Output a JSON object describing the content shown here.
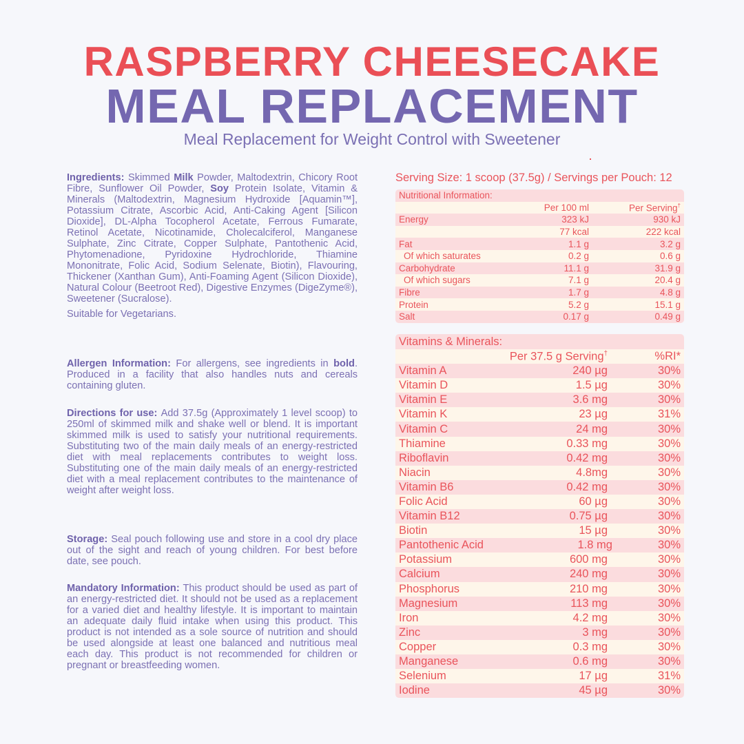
{
  "header": {
    "title_line1": "RASPBERRY CHEESECAKE",
    "title_line2": "MEAL REPLACEMENT",
    "subtitle": "Meal Replacement for Weight Control with Sweetener"
  },
  "colors": {
    "red": "#ea4f56",
    "purple": "#7467b0",
    "pink_row": "#fbdcde",
    "cream_row": "#fef6ea",
    "background": "#f6f7fb"
  },
  "info": {
    "ingredients": [
      {
        "b": true,
        "t": "Ingredients: "
      },
      {
        "t": "Skimmed "
      },
      {
        "b": true,
        "t": "Milk"
      },
      {
        "t": " Powder, Maltodextrin, Chicory Root Fibre, Sunflower Oil Powder, "
      },
      {
        "b": true,
        "t": "Soy"
      },
      {
        "t": " Protein Isolate, Vitamin & Minerals (Maltodextrin, Magnesium Hydroxide [Aquamin™], Potassium Citrate, Ascorbic Acid, Anti-Caking Agent [Silicon Dioxide], DL-Alpha Tocopherol Acetate, Ferrous Fumarate, Retinol Acetate, Nicotinamide, Cholecalciferol, Manganese Sulphate, Zinc Citrate, Copper Sulphate, Pantothenic Acid, Phytomenadione, Pyridoxine Hydrochloride, Thiamine Mononitrate, Folic Acid, Sodium Selenate, Biotin), Flavouring, Thickener (Xanthan Gum), Anti-Foaming Agent (Silicon Dioxide), Natural Colour (Beetroot Red), Digestive Enzymes (DigeZyme®), Sweetener (Sucralose)."
      }
    ],
    "vegetarian": "Suitable for Vegetarians.",
    "allergen": [
      {
        "b": true,
        "t": "Allergen Information: "
      },
      {
        "t": "For allergens, see ingredients in "
      },
      {
        "b": true,
        "t": "bold"
      },
      {
        "t": ". Produced in a facility that also handles nuts and cereals containing gluten."
      }
    ],
    "directions": [
      {
        "b": true,
        "t": "Directions for use: "
      },
      {
        "t": "Add 37.5g (Approximately 1 level scoop) to 250ml of skimmed milk and shake well or blend. It is important skimmed milk is used to satisfy your nutritional requirements. Substituting two of the main daily meals of an energy-restricted diet with meal replacements contributes to weight loss. Substituting one of the main daily meals of an energy-restricted diet with a meal replacement contributes to the maintenance of weight after weight loss."
      }
    ],
    "storage": [
      {
        "b": true,
        "t": "Storage: "
      },
      {
        "t": "Seal pouch following use and store in a cool dry place out of the sight and reach of young children. For best before date, see pouch."
      }
    ],
    "mandatory": [
      {
        "b": true,
        "t": "Mandatory Information: "
      },
      {
        "t": "This product should be used as part of an energy-restricted diet. It should not be used as a replacement for a varied diet and healthy lifestyle. It is important to maintain an adequate daily fluid intake when using this product. This product is not intended as a sole source of nutrition and should be used alongside at least one balanced and nutritious meal each day. This product is not recommended for children or pregnant or breastfeeding women."
      }
    ]
  },
  "serving_size": "Serving Size: 1 scoop (37.5g) / Servings per Pouch: 12",
  "nutrition": {
    "title": "Nutritional Information:",
    "columns": [
      "",
      "Per 100 ml",
      "Per Serving",
      "†"
    ],
    "rows": [
      {
        "label": "Energy",
        "per100": "323 kJ",
        "serving": "930 kJ"
      },
      {
        "label": "",
        "per100": "77 kcal",
        "serving": "222 kcal"
      },
      {
        "label": "Fat",
        "per100": "1.1 g",
        "serving": "3.2 g"
      },
      {
        "label": "Of which saturates",
        "per100": "0.2 g",
        "serving": "0.6 g",
        "indent": true
      },
      {
        "label": "Carbohydrate",
        "per100": "11.1 g",
        "serving": "31.9 g"
      },
      {
        "label": "Of which sugars",
        "per100": "7.1 g",
        "serving": "20.4 g",
        "indent": true
      },
      {
        "label": "Fibre",
        "per100": "1.7 g",
        "serving": "4.8 g"
      },
      {
        "label": "Protein",
        "per100": "5.2 g",
        "serving": "15.1 g"
      },
      {
        "label": "Salt",
        "per100": "0.17 g",
        "serving": "0.49 g"
      }
    ]
  },
  "vitamins": {
    "title": "Vitamins & Minerals:",
    "columns": [
      "",
      "Per 37.5 g Serving",
      "%RI*",
      "†"
    ],
    "rows": [
      {
        "label": "Vitamin A",
        "amount": "240 µg",
        "ri": "30%"
      },
      {
        "label": "Vitamin D",
        "amount": "1.5 µg",
        "ri": "30%"
      },
      {
        "label": "Vitamin E",
        "amount": "3.6 mg",
        "ri": "30%"
      },
      {
        "label": "Vitamin K",
        "amount": "23 µg",
        "ri": "31%"
      },
      {
        "label": "Vitamin C",
        "amount": "24 mg",
        "ri": "30%"
      },
      {
        "label": "Thiamine",
        "amount": "0.33 mg",
        "ri": "30%"
      },
      {
        "label": "Riboflavin",
        "amount": "0.42 mg",
        "ri": "30%"
      },
      {
        "label": "Niacin",
        "amount": "4.8mg",
        "ri": "30%"
      },
      {
        "label": "Vitamin B6",
        "amount": "0.42 mg",
        "ri": "30%"
      },
      {
        "label": "Folic Acid",
        "amount": "60 µg",
        "ri": "30%"
      },
      {
        "label": "Vitamin B12",
        "amount": "0.75 µg",
        "ri": "30%"
      },
      {
        "label": "Biotin",
        "amount": "15 µg",
        "ri": "30%"
      },
      {
        "label": "Pantothenic Acid",
        "amount": "1.8 mg",
        "ri": "30%"
      },
      {
        "label": "Potassium",
        "amount": "600 mg",
        "ri": "30%"
      },
      {
        "label": "Calcium",
        "amount": "240 mg",
        "ri": "30%"
      },
      {
        "label": "Phosphorus",
        "amount": "210 mg",
        "ri": "30%"
      },
      {
        "label": "Magnesium",
        "amount": "113 mg",
        "ri": "30%"
      },
      {
        "label": "Iron",
        "amount": "4.2 mg",
        "ri": "30%"
      },
      {
        "label": "Zinc",
        "amount": "3 mg",
        "ri": "30%"
      },
      {
        "label": "Copper",
        "amount": "0.3 mg",
        "ri": "30%"
      },
      {
        "label": "Manganese",
        "amount": "0.6 mg",
        "ri": "30%"
      },
      {
        "label": "Selenium",
        "amount": "17 µg",
        "ri": "31%"
      },
      {
        "label": "Iodine",
        "amount": "45 µg",
        "ri": "30%"
      }
    ]
  }
}
